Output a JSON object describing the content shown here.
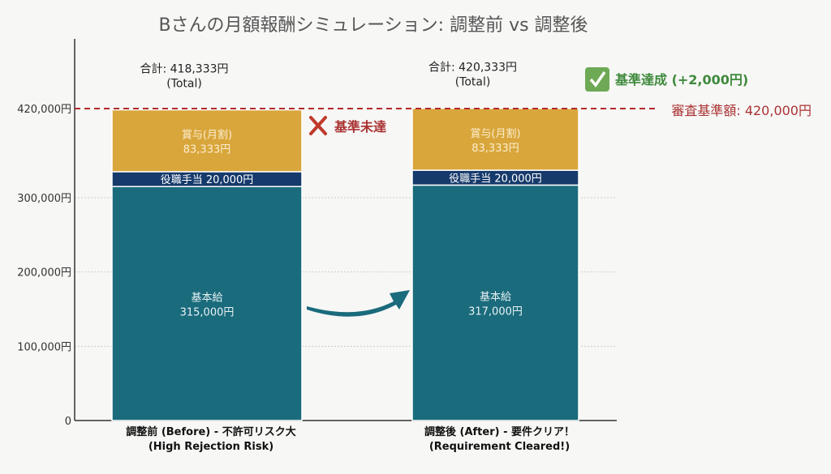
{
  "chart_data": {
    "type": "bar",
    "stacked": true,
    "title": "Bさんの月額報酬シミュレーション: 調整前 vs 調整後",
    "categories": [
      {
        "line1": "調整前 (Before) - 不許可リスク大",
        "line2": "(High Rejection Risk)"
      },
      {
        "line1": "調整後 (After) - 要件クリア！",
        "line2": "(Requirement Cleared!)"
      }
    ],
    "series": [
      {
        "name": "基本給",
        "values": [
          315000,
          317000
        ],
        "labels": [
          "315,000円",
          "317,000円"
        ],
        "color": "#1a6b7c"
      },
      {
        "name": "役職手当",
        "values": [
          20000,
          20000
        ],
        "labels": [
          "20,000円",
          "20,000円"
        ],
        "color": "#163a6b"
      },
      {
        "name": "賞与(月割)",
        "values": [
          83333,
          83333
        ],
        "labels": [
          "83,333円",
          "83,333円"
        ],
        "color": "#d9a63c"
      }
    ],
    "totals": [
      {
        "label": "合計: 418,333円",
        "sub": "(Total)"
      },
      {
        "label": "合計: 420,333円",
        "sub": "(Total)"
      }
    ],
    "yticks": [
      {
        "value": 0,
        "label": "0"
      },
      {
        "value": 100000,
        "label": "100,000円"
      },
      {
        "value": 200000,
        "label": "200,000円"
      },
      {
        "value": 300000,
        "label": "300,000円"
      },
      {
        "value": 420000,
        "label": "420,000円"
      }
    ],
    "ylim": [
      0,
      440000
    ],
    "threshold": {
      "value": 420000,
      "label": "審査基準額: 420,000円",
      "color": "#b22a2a"
    },
    "annotations": {
      "fail": {
        "text": "基準未達",
        "icon": "x-icon",
        "color": "#b22a2a"
      },
      "pass": {
        "text": "基準達成 (+2,000円)",
        "icon": "check-icon",
        "color": "#3f8a3c"
      }
    },
    "grid": true
  }
}
